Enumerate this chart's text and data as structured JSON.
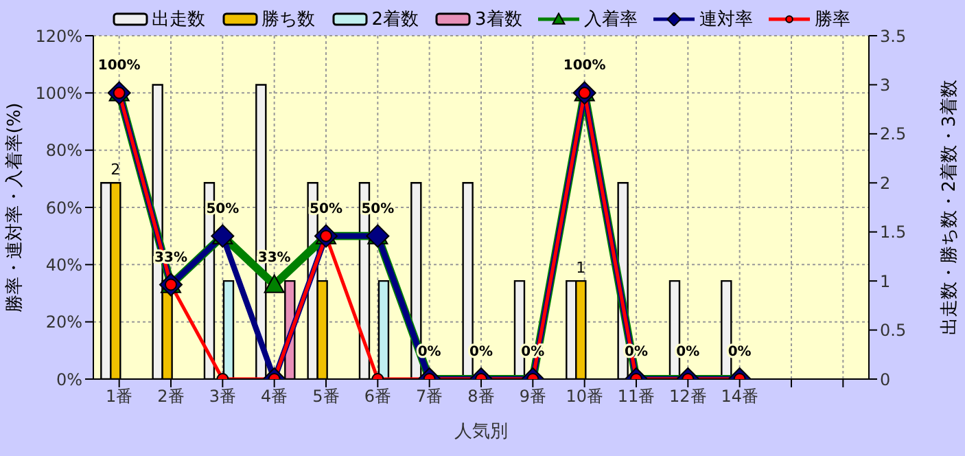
{
  "chart_data": {
    "type": "bar",
    "xlabel": "人気別",
    "ylabel": "勝率・連対率・入着率(%)",
    "y2label": "出走数・勝ち数・2着数・3着数",
    "categories": [
      "1番",
      "2番",
      "3番",
      "4番",
      "5番",
      "6番",
      "7番",
      "8番",
      "9番",
      "10番",
      "11番",
      "12番",
      "14番",
      null,
      null
    ],
    "series": [
      {
        "name": "出走数",
        "axis": "y2",
        "color": "#f0f0f0",
        "values": [
          2,
          3,
          2,
          3,
          2,
          2,
          2,
          2,
          1,
          1,
          2,
          1,
          1,
          null,
          null
        ]
      },
      {
        "name": "勝ち数",
        "axis": "y2",
        "color": "#f0c000",
        "values": [
          2,
          1,
          0,
          0,
          1,
          0,
          0,
          0,
          0,
          1,
          0,
          0,
          0,
          null,
          null
        ],
        "value_labels": [
          "2",
          null,
          null,
          null,
          null,
          null,
          null,
          null,
          null,
          "1",
          null,
          null,
          null,
          null,
          null
        ]
      },
      {
        "name": "2着数",
        "axis": "y2",
        "color": "#c0f0f0",
        "values": [
          0,
          0,
          1,
          0,
          0,
          1,
          0,
          0,
          0,
          0,
          0,
          0,
          0,
          null,
          null
        ]
      },
      {
        "name": "3着数",
        "axis": "y2",
        "color": "#e890b8",
        "values": [
          0,
          0,
          0,
          1,
          0,
          0,
          0,
          0,
          0,
          0,
          0,
          0,
          0,
          null,
          null
        ]
      },
      {
        "name": "入着率",
        "type": "line",
        "axis": "y",
        "color": "#008000",
        "marker": "triangle",
        "values": [
          100,
          33,
          50,
          33,
          50,
          50,
          0,
          0,
          0,
          100,
          0,
          0,
          0,
          null,
          null
        ],
        "value_labels": [
          "100%",
          "33%",
          "50%",
          "33%",
          "50%",
          "50%",
          "0%",
          "0%",
          "0%",
          "100%",
          "0%",
          "0%",
          "0%",
          null,
          null
        ]
      },
      {
        "name": "連対率",
        "type": "line",
        "axis": "y",
        "color": "#000080",
        "marker": "diamond",
        "values": [
          100,
          33,
          50,
          0,
          50,
          50,
          0,
          0,
          0,
          100,
          0,
          0,
          0,
          null,
          null
        ]
      },
      {
        "name": "勝率",
        "type": "line",
        "axis": "y",
        "color": "#ff0000",
        "marker": "circle",
        "values": [
          100,
          33,
          0,
          0,
          50,
          0,
          0,
          0,
          0,
          100,
          0,
          0,
          0,
          null,
          null
        ]
      }
    ],
    "ylim": [
      0,
      120
    ],
    "yticks": [
      {
        "value": 0,
        "label": "0%"
      },
      {
        "value": 20,
        "label": "20%"
      },
      {
        "value": 40,
        "label": "40%"
      },
      {
        "value": 60,
        "label": "60%"
      },
      {
        "value": 80,
        "label": "80%"
      },
      {
        "value": 100,
        "label": "100%"
      },
      {
        "value": 120,
        "label": "120%"
      }
    ],
    "y2lim": [
      0,
      3.5
    ],
    "y2ticks": [
      0,
      0.5,
      1,
      1.5,
      2,
      2.5,
      3,
      3.5
    ],
    "grid": true,
    "legend": "top"
  }
}
